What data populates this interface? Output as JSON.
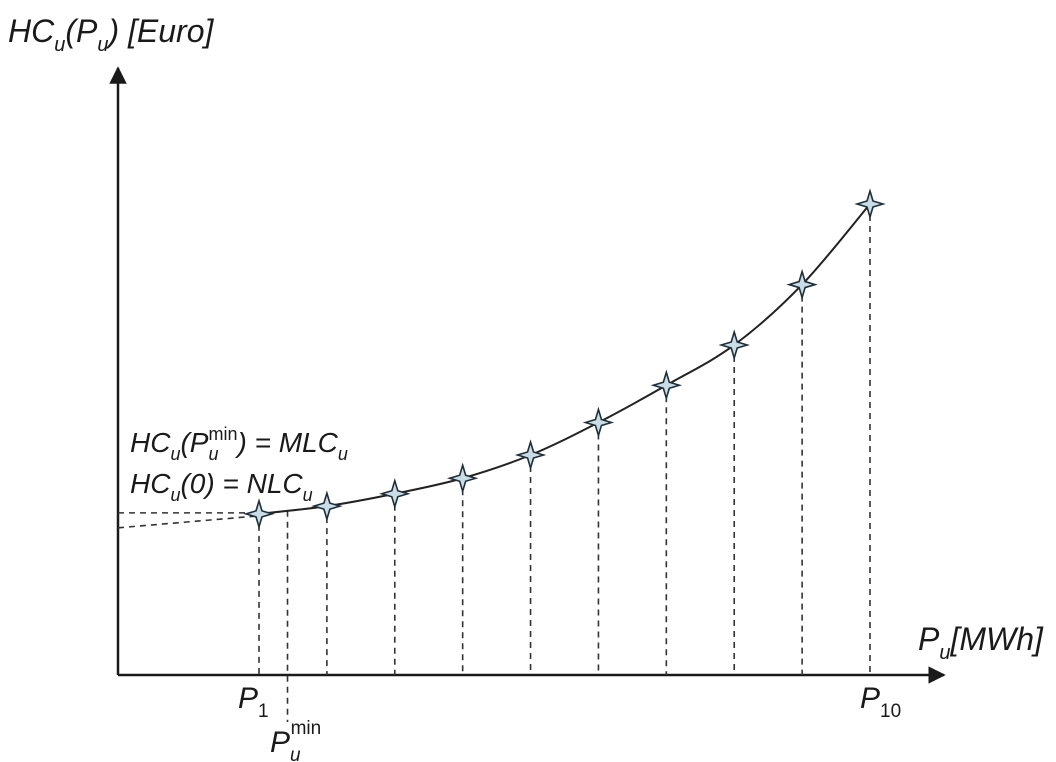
{
  "chart_data": {
    "type": "line",
    "y_axis": {
      "main": "HC",
      "sub": "u",
      "open": "(",
      "inner": "P",
      "inner_sub": "u",
      "close": ")",
      "unit": " [Euro]"
    },
    "x_axis": {
      "main": "P",
      "sub": "u",
      "unit": "[MWh]"
    },
    "annotations": {
      "line1": {
        "pre": "HC",
        "pre_sub": "u",
        "open": "(P",
        "p_sub": "u",
        "p_sup": "min",
        "rest": ") = MLC",
        "rest_sub": "u"
      },
      "line2": {
        "pre": "HC",
        "pre_sub": "u",
        "rest": "(0) = NLC",
        "rest_sub": "u"
      }
    },
    "tick_labels": {
      "p1": {
        "main": "P",
        "sub": "1"
      },
      "p10": {
        "main": "P",
        "sub": "10"
      },
      "pmin": {
        "main": "P",
        "sub": "u",
        "sup": "min"
      }
    },
    "points": [
      {
        "x": 1,
        "y": 0.04
      },
      {
        "x": 2,
        "y": 0.09
      },
      {
        "x": 3,
        "y": 0.17
      },
      {
        "x": 4,
        "y": 0.27
      },
      {
        "x": 5,
        "y": 0.42
      },
      {
        "x": 6,
        "y": 0.63
      },
      {
        "x": 7,
        "y": 0.87
      },
      {
        "x": 8,
        "y": 1.13
      },
      {
        "x": 9,
        "y": 1.52
      },
      {
        "x": 10,
        "y": 2.04
      }
    ],
    "x_min_marker": 1.42,
    "ylim": [
      -1,
      2.04
    ],
    "curve_start_y": -0.05
  }
}
